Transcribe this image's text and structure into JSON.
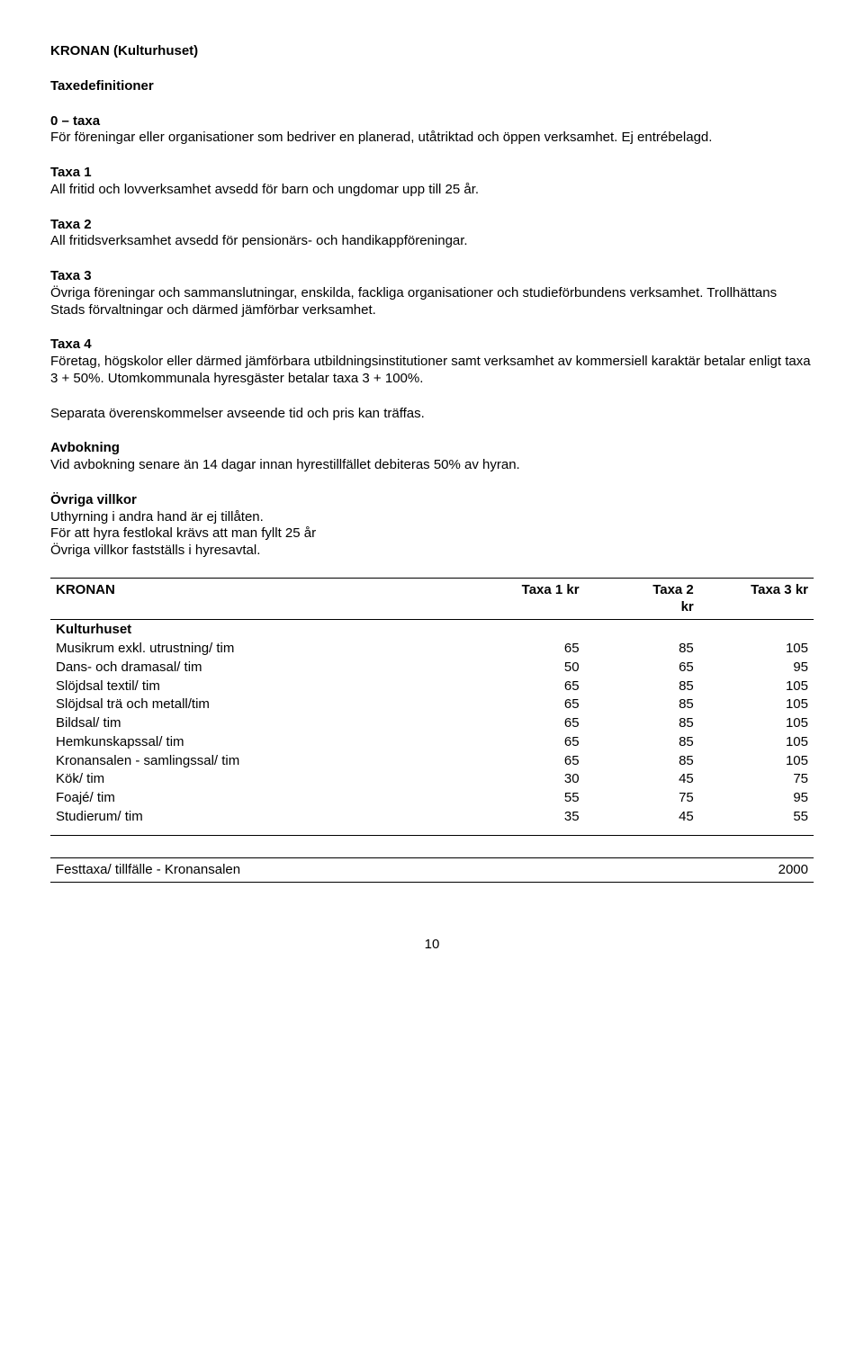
{
  "title": "KRONAN (Kulturhuset)",
  "sections": {
    "taxedef_label": "Taxedefinitioner",
    "s0": {
      "label": "0 – taxa",
      "text": "För föreningar eller organisationer som bedriver en planerad, utåtriktad och öppen verksamhet. Ej entrébelagd."
    },
    "s1": {
      "label": "Taxa 1",
      "text": "All fritid och lovverksamhet avsedd för barn och ungdomar upp till 25 år."
    },
    "s2": {
      "label": "Taxa 2",
      "text": "All fritidsverksamhet avsedd för pensionärs- och handikappföreningar."
    },
    "s3": {
      "label": "Taxa 3",
      "text": "Övriga föreningar och sammanslutningar, enskilda, fackliga organisationer och studieförbundens verksamhet. Trollhättans Stads förvaltningar och därmed jämförbar verksamhet."
    },
    "s4": {
      "label": "Taxa 4",
      "text": "Företag, högskolor eller därmed jämförbara utbildningsinstitutioner samt verksamhet av kommersiell karaktär betalar enligt taxa 3 + 50%. Utomkommunala hyresgäster betalar taxa 3 + 100%."
    },
    "separata": "Separata överenskommelser avseende tid och pris kan träffas.",
    "avbokning": {
      "label": "Avbokning",
      "text": "Vid avbokning senare än 14 dagar innan hyrestillfället debiteras 50% av hyran."
    },
    "ovrig": {
      "label": "Övriga villkor",
      "l1": "Uthyrning i andra hand är ej tillåten.",
      "l2": "För att hyra festlokal krävs att man fyllt 25 år",
      "l3": "Övriga villkor fastställs i hyresavtal."
    }
  },
  "table": {
    "headers": {
      "c0": "KRONAN",
      "c1": "Taxa 1 kr",
      "c2": "Taxa 2\nkr",
      "c3": "Taxa 3 kr"
    },
    "subhead": "Kulturhuset",
    "rows": [
      {
        "name": "Musikrum exkl. utrustning/ tim",
        "t1": "65",
        "t2": "85",
        "t3": "105"
      },
      {
        "name": "Dans- och dramasal/ tim",
        "t1": "50",
        "t2": "65",
        "t3": "95"
      },
      {
        "name": "Slöjdsal textil/ tim",
        "t1": "65",
        "t2": "85",
        "t3": "105"
      },
      {
        "name": "Slöjdsal trä och metall/tim",
        "t1": "65",
        "t2": "85",
        "t3": "105"
      },
      {
        "name": "Bildsal/ tim",
        "t1": "65",
        "t2": "85",
        "t3": "105"
      },
      {
        "name": "Hemkunskapssal/ tim",
        "t1": "65",
        "t2": "85",
        "t3": "105"
      },
      {
        "name": "Kronansalen - samlingssal/ tim",
        "t1": "65",
        "t2": "85",
        "t3": "105"
      },
      {
        "name": "Kök/ tim",
        "t1": "30",
        "t2": "45",
        "t3": "75"
      },
      {
        "name": "Foajé/ tim",
        "t1": "55",
        "t2": "75",
        "t3": "95"
      },
      {
        "name": "Studierum/ tim",
        "t1": "35",
        "t2": "45",
        "t3": "55"
      }
    ]
  },
  "fest": {
    "label": "Festtaxa/ tillfälle - Kronansalen",
    "value": "2000"
  },
  "page_number": "10"
}
